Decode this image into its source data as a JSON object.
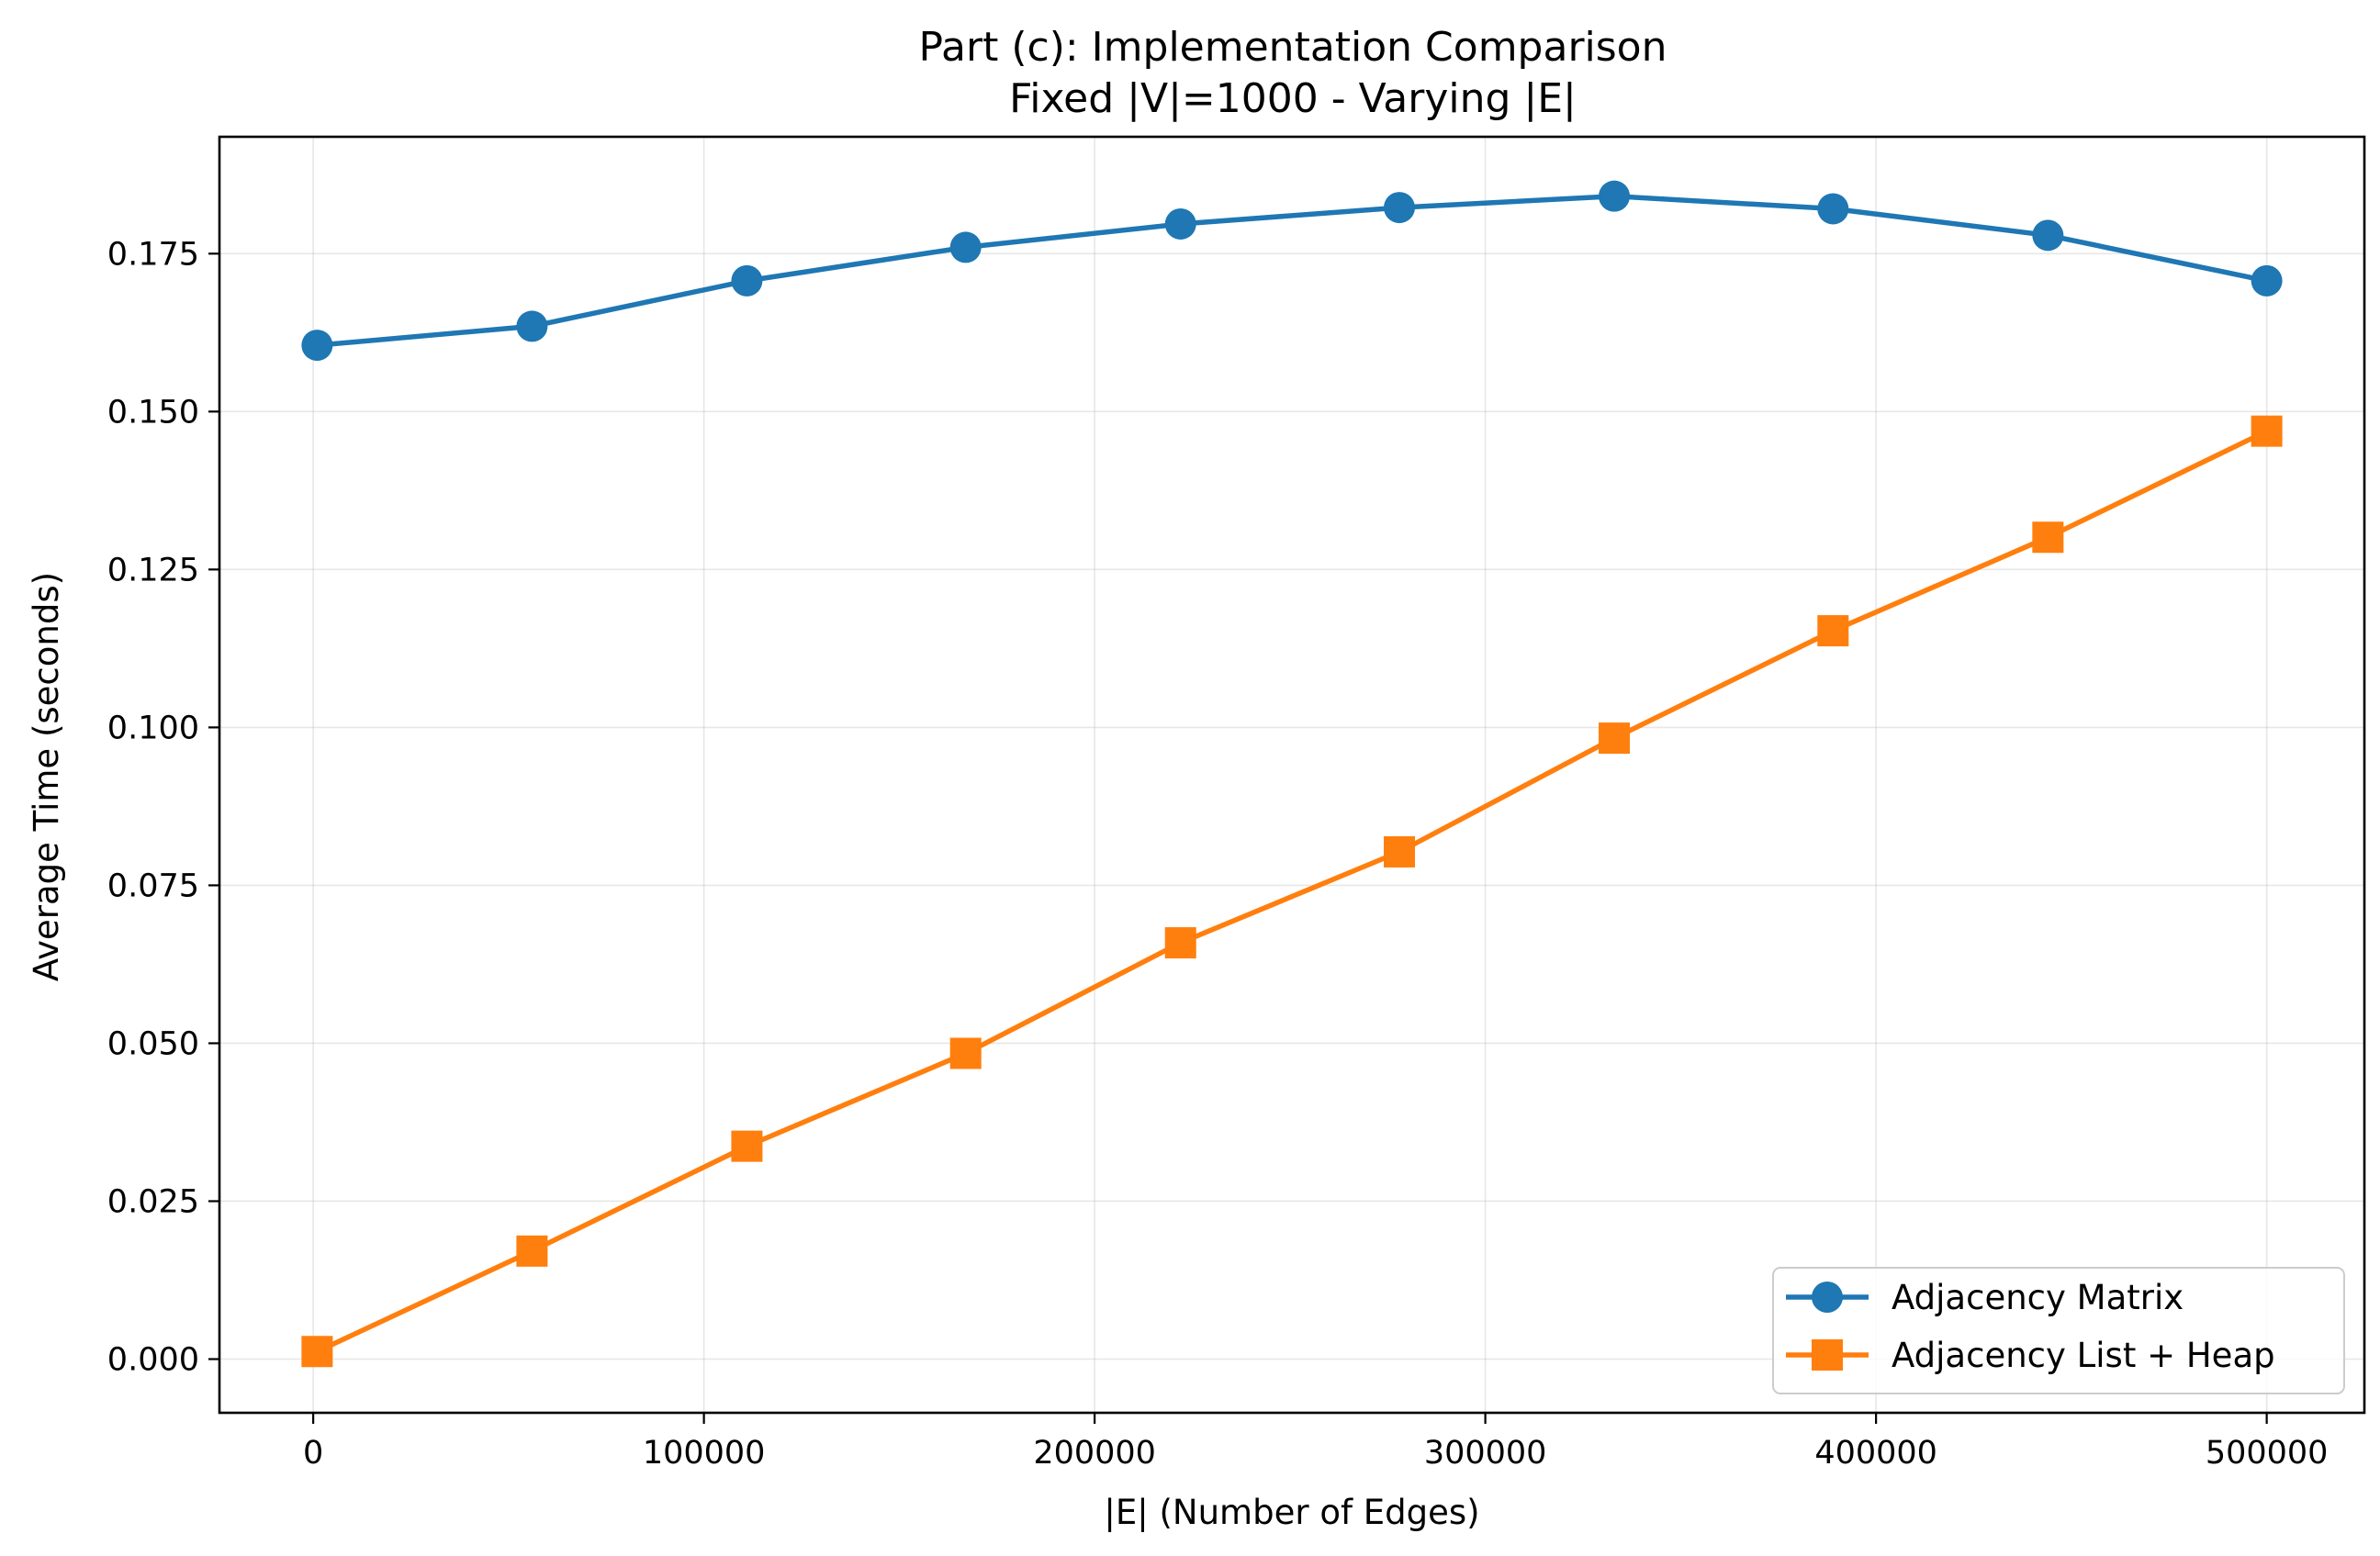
{
  "chart_data": {
    "type": "line",
    "title": "Part (c): Implementation Comparison",
    "subtitle": "Fixed |V|=1000 - Varying |E|",
    "xlabel": "|E| (Number of Edges)",
    "ylabel": "Average Time (seconds)",
    "x": [
      1000,
      56000,
      111000,
      167000,
      222000,
      278000,
      333000,
      389000,
      444000,
      500000
    ],
    "xlim": [
      -24000,
      525000
    ],
    "ylim": [
      -0.0085,
      0.1935
    ],
    "xticks": [
      0,
      100000,
      200000,
      300000,
      400000,
      500000
    ],
    "xtick_labels": [
      "0",
      "100000",
      "200000",
      "300000",
      "400000",
      "500000"
    ],
    "yticks": [
      0.0,
      0.025,
      0.05,
      0.075,
      0.1,
      0.125,
      0.15,
      0.175
    ],
    "ytick_labels": [
      "0.000",
      "0.025",
      "0.050",
      "0.075",
      "0.100",
      "0.125",
      "0.150",
      "0.175"
    ],
    "grid": true,
    "legend_position": "lower-right",
    "series": [
      {
        "name": "Adjacency Matrix",
        "color": "#1f77b4",
        "marker": "circle",
        "values": [
          0.1605,
          0.1635,
          0.1707,
          0.176,
          0.1797,
          0.1823,
          0.1841,
          0.1821,
          0.1779,
          0.1707
        ]
      },
      {
        "name": "Adjacency List + Heap",
        "color": "#ff7f0e",
        "marker": "square",
        "values": [
          0.0012,
          0.0171,
          0.0337,
          0.0484,
          0.0659,
          0.0803,
          0.0983,
          0.1153,
          0.1301,
          0.1469
        ]
      }
    ]
  }
}
